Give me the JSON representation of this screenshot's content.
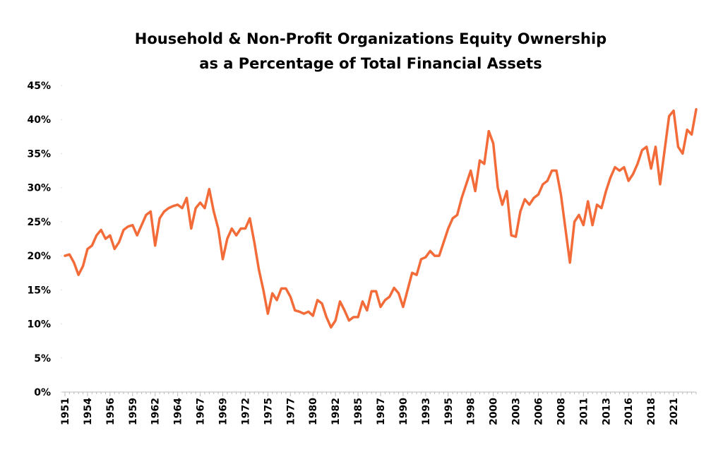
{
  "chart_data": {
    "type": "line",
    "title": [
      "Household & Non-Profit Organizations Equity Ownership",
      "as a Percentage of Total Financial Assets"
    ],
    "categories": [
      "1951",
      null,
      null,
      null,
      null,
      "1954",
      null,
      null,
      null,
      null,
      "1956",
      null,
      null,
      null,
      null,
      "1959",
      null,
      null,
      null,
      null,
      "1962",
      null,
      null,
      null,
      null,
      "1964",
      null,
      null,
      null,
      null,
      "1967",
      null,
      null,
      null,
      null,
      "1969",
      null,
      null,
      null,
      null,
      "1972",
      null,
      null,
      null,
      null,
      "1975",
      null,
      null,
      null,
      null,
      "1977",
      null,
      null,
      null,
      null,
      "1980",
      null,
      null,
      null,
      null,
      "1982",
      null,
      null,
      null,
      null,
      "1985",
      null,
      null,
      null,
      null,
      "1987",
      null,
      null,
      null,
      null,
      "1990",
      null,
      null,
      null,
      null,
      "1993",
      null,
      null,
      null,
      null,
      "1995",
      null,
      null,
      null,
      null,
      "1998",
      null,
      null,
      null,
      null,
      "2000",
      null,
      null,
      null,
      null,
      "2003",
      null,
      null,
      null,
      null,
      "2006",
      null,
      null,
      null,
      null,
      "2008",
      null,
      null,
      null,
      null,
      "2011",
      null,
      null,
      null,
      null,
      "2013",
      null,
      null,
      null,
      null,
      "2016",
      null,
      null,
      null,
      null,
      "2018",
      null,
      null,
      null,
      null,
      "2021",
      null,
      null,
      null,
      null,
      null
    ],
    "series": [
      {
        "color": "#f26b38",
        "values": [
          20,
          20.2,
          19,
          17.2,
          18.5,
          21,
          21.5,
          23,
          23.8,
          22.5,
          23,
          21,
          22,
          23.8,
          24.3,
          24.5,
          23,
          24.5,
          26,
          26.5,
          21.5,
          25.5,
          26.5,
          27,
          27.3,
          27.5,
          27,
          28.5,
          24,
          27,
          27.8,
          27,
          29.8,
          26.5,
          24,
          19.5,
          22.5,
          24,
          23,
          24,
          24,
          25.5,
          22,
          18,
          15,
          11.5,
          14.5,
          13.5,
          15.2,
          15.2,
          14,
          12,
          11.8,
          11.5,
          11.8,
          11.2,
          13.5,
          13,
          11,
          9.5,
          10.5,
          13.3,
          12,
          10.5,
          11,
          11,
          13.3,
          12,
          14.8,
          14.8,
          12.5,
          13.5,
          14,
          15.3,
          14.5,
          12.5,
          15,
          17.5,
          17.2,
          19.5,
          19.8,
          20.7,
          20,
          20,
          22,
          24,
          25.5,
          26,
          28.5,
          30.5,
          32.5,
          29.5,
          34,
          33.5,
          38.3,
          36.5,
          30,
          27.5,
          29.5,
          23,
          22.8,
          26.5,
          28.3,
          27.5,
          28.5,
          29,
          30.5,
          31,
          32.5,
          32.5,
          29,
          24,
          19,
          25,
          26,
          24.5,
          28,
          24.5,
          27.5,
          27,
          29.5,
          31.5,
          33,
          32.5,
          33,
          31,
          32,
          33.5,
          35.5,
          36,
          32.8,
          36,
          30.5,
          35.5,
          40.5,
          41.3,
          36,
          35,
          38.5,
          37.8,
          41.5
        ]
      }
    ],
    "ylim": [
      0,
      45
    ],
    "yticks": [
      {
        "value": 0,
        "label": "0%"
      },
      {
        "value": 5,
        "label": "5%"
      },
      {
        "value": 10,
        "label": "10%"
      },
      {
        "value": 15,
        "label": "15%"
      },
      {
        "value": 20,
        "label": "20%"
      },
      {
        "value": 25,
        "label": "25%"
      },
      {
        "value": 30,
        "label": "30%"
      },
      {
        "value": 35,
        "label": "35%"
      },
      {
        "value": 40,
        "label": "40%"
      },
      {
        "value": 45,
        "label": "45%"
      }
    ],
    "grid": false
  }
}
